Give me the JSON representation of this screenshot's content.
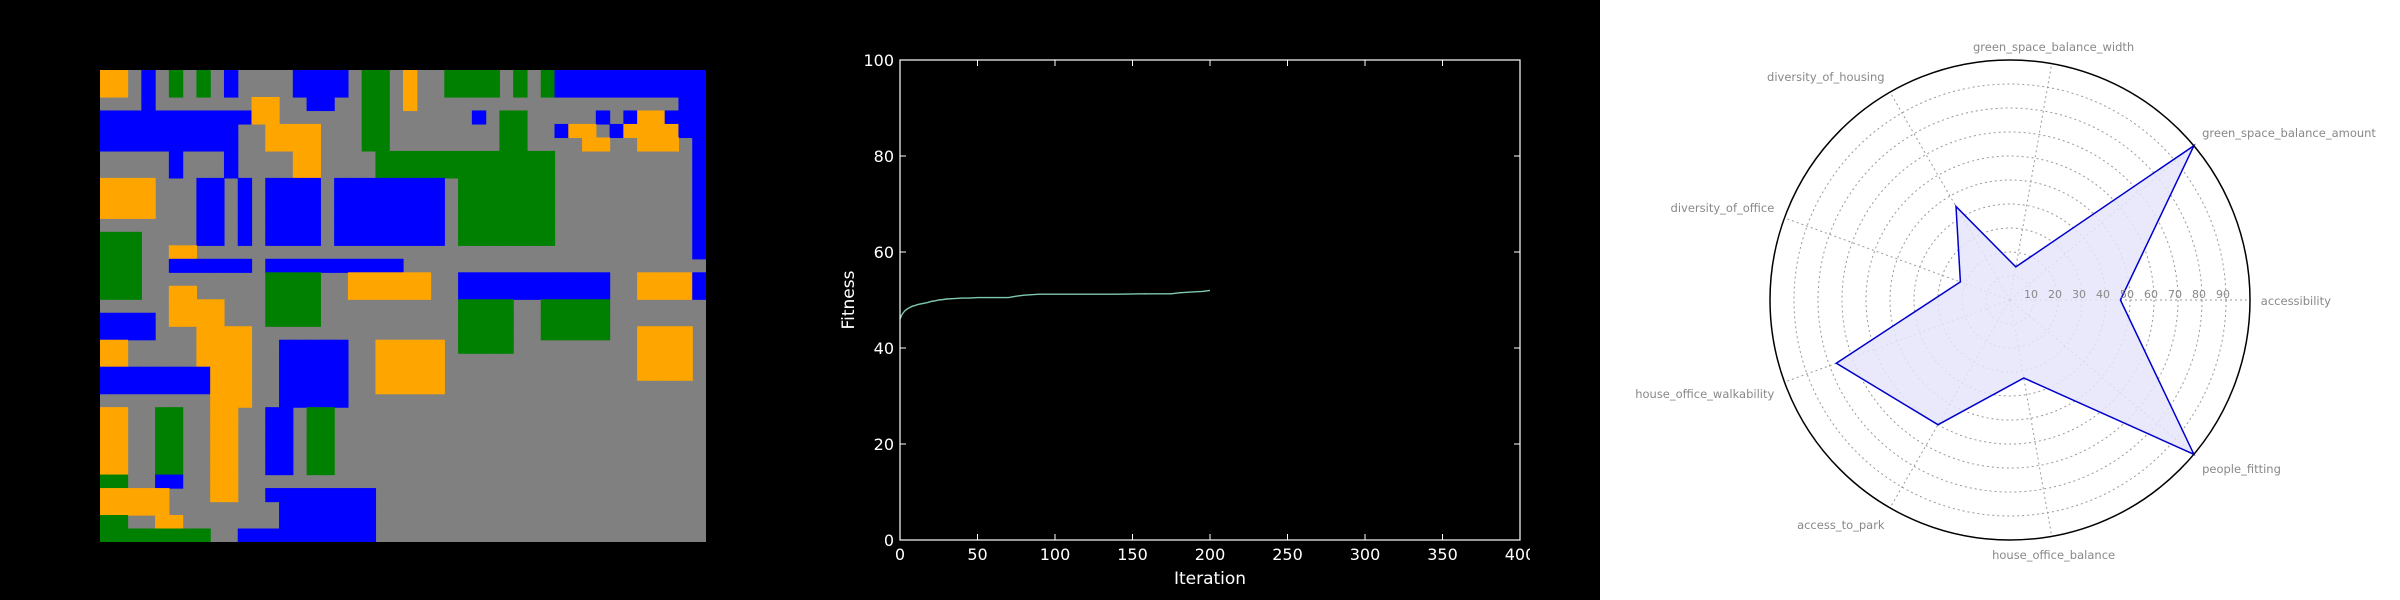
{
  "colors": {
    "background": "#000000",
    "road": "#808080",
    "housing": "#ffa500",
    "office": "#0000ff",
    "green": "#008000",
    "fitness_line": "#7fc9b0",
    "radar_line": "#0000cc",
    "radar_fill": "#e5e5fa",
    "radar_label": "#888888",
    "radar_background": "#ffffff"
  },
  "chart_data": [
    {
      "type": "heatmap",
      "description_key": "land-use-grid",
      "cell_codes": {
        "R": "road",
        "H": "housing",
        "O": "office",
        "G": "green"
      },
      "grid": [
        "HHRORGRGRORRRROOOORGGRHRRGGGGRGRGOOOOOOOOOOO",
        "HHRORGRGRORRRROOOORGGRHRRGGGGRGRGOOOOOOOOOOO",
        "RRRORRRRRRRHHRROORRGGRHRRRRRRRRRRRRRRRRRRROO",
        "OOOOOOOOOOOHHRRRRRRGGRRRRRRORGGRRRRROROHHOOO",
        "OOOOOOOOOORRHHHHRRRGGRRRRRRRRGGRROHHROHHHHOO",
        "OOOOOOOOOORRHHHHRRRGGRRRRRRRRGGRRRRHHRRHHHRO",
        "RRRRRORRRORRRRHHRRRRGGGGGGGGGGGGGRRRRRRRRRRO",
        "RRRRRORRRORRRRHHRRRRGGGGGGGGGGGGGRRRRRRRRRRO",
        "HHHHRRROOROROOOOROOOOOOOORGGGGGGGRRRRRRRRRRO",
        "HHHHRRROOROROOOOROOOOOOOORGGGGGGGRRRRRRRRRRO",
        "HHHHRRROOROROOOOROOOOOOOORGGGGGGGRRRRRRRRRRO",
        "RRRRRRROOROROOOOROOOOOOOORGGGGGGGRRRRRRRRRRO",
        "GGGRRRROOROROOOOROOOOOOOORGGGGGGGRRRRRRRRRRO",
        "GGGRRHHRRRRRRRRRRRRRRRRRRRRRRRRRRRRRRRRRRRRO",
        "GGGRROOOOOOROOOOOOOOOORRRRRRRRRRRRRRRRRRRRRR",
        "GGGRRRRRRRRRGGGGRRHHHHHHRROOOOOOOOOOORRHHHHO",
        "GGGRRHHRRRRRGGGGRRHHHHHHRROOOOOOOOOOORRHHHHO",
        "RRRRRHHHHRRRGGGGRRRRRRRRRRGGGGRRGGGGGRRRRRRR",
        "OOOORHHHHRRRGGGGRRRRRRRRRRGGGGRRGGGGGRRRRRRR",
        "OOOORRRHHHHRRRRRRRRRRRRRRRGGGGRRGGGGGRRHHHHR",
        "HHRRRRRHHHHRROOOOORRHHHHHRGGGGRRRRRRRRRHHHHR",
        "HHRRRRRHHHHRROOOOORRHHHHHRRRRRRRRRRRRRRHHHHR",
        "OOOOOOOOHHHRROOOOORRHHHHHRRRRRRRRRRRRRRHHHHR",
        "OOOOOOOOHHHRROOOOORRHHHHHRRRRRRRRRRRRRRRRRRR",
        "RRRRRRRRHHHRROOOOORRRRRRRRRRRRRRRRRRRRRRRRRR",
        "HHRRGGRRHHRROORGGRRRRRRRRRRRRRRRRRRRRRRRRRRR",
        "HHRRGGRRHHRROORGGRRRRRRRRRRRRRRRRRRRRRRRRRRR",
        "HHRRGGRRHHRROORGGRRRRRRRRRRRRRRRRRRRRRRRRRRR",
        "HHRRGGRRHHRROORGGRRRRRRRRRRRRRRRRRRRRRRRRRRR",
        "HHRRGGRRHHRROORGGRRRRRRRRRRRRRRRRRRRRRRRRRRR",
        "GGRROORRHHRRRRRRRRRRRRRRRRRRRRRRRRRRRRRRRRRR",
        "HHHHHRRRHHRROOOOOOOORRRRRRRRRRRRRRRRRRRRRRRR",
        "HHHHHRRRRRRRROOOOOOORRRRRRRRRRRRRRRRRRRRRRRR",
        "GGRRHHRRRRRRROOOOOOORRRRRRRRRRRRRRRRRRRRRRRR",
        "GGGGGGGGRROOOOOOOOOORRRRRRRRRRRRRRRRRRRRRRRR"
      ]
    },
    {
      "type": "line",
      "xlabel": "Iteration",
      "ylabel": "Fitness",
      "xlim": [
        0,
        400
      ],
      "ylim": [
        0,
        100
      ],
      "xticks": [
        "0",
        "50",
        "100",
        "150",
        "200",
        "250",
        "300",
        "350",
        "400"
      ],
      "yticks": [
        "0",
        "20",
        "40",
        "60",
        "80",
        "100"
      ],
      "grid": false,
      "series": [
        {
          "x": [
            0,
            1,
            2,
            3,
            4,
            5,
            6,
            8,
            10,
            12,
            15,
            18,
            20,
            22,
            25,
            28,
            30,
            35,
            40,
            45,
            50,
            60,
            70,
            75,
            80,
            85,
            90,
            100,
            120,
            140,
            160,
            175,
            180,
            185,
            190,
            195,
            200
          ],
          "y": [
            46.0,
            46.8,
            47.3,
            47.7,
            48.0,
            48.2,
            48.4,
            48.7,
            48.9,
            49.1,
            49.3,
            49.5,
            49.7,
            49.8,
            50.0,
            50.1,
            50.2,
            50.3,
            50.4,
            50.4,
            50.5,
            50.5,
            50.5,
            50.8,
            51.0,
            51.1,
            51.2,
            51.2,
            51.2,
            51.2,
            51.3,
            51.3,
            51.5,
            51.6,
            51.7,
            51.8,
            52.0
          ]
        }
      ]
    },
    {
      "type": "radar",
      "rlim": [
        0,
        100
      ],
      "ring_values": [
        "10",
        "20",
        "30",
        "40",
        "50",
        "60",
        "70",
        "80",
        "90"
      ],
      "axes": [
        {
          "label": "accessibility",
          "value": 46
        },
        {
          "label": "green_space_balance_amount",
          "value": 100
        },
        {
          "label": "green_space_balance_width",
          "value": 14
        },
        {
          "label": "diversity_of_housing",
          "value": 45
        },
        {
          "label": "diversity_of_office",
          "value": 22
        },
        {
          "label": "house_office_walkability",
          "value": 77
        },
        {
          "label": "access_to_park",
          "value": 60
        },
        {
          "label": "house_office_balance",
          "value": 33
        },
        {
          "label": "people_fitting",
          "value": 100
        }
      ]
    }
  ]
}
